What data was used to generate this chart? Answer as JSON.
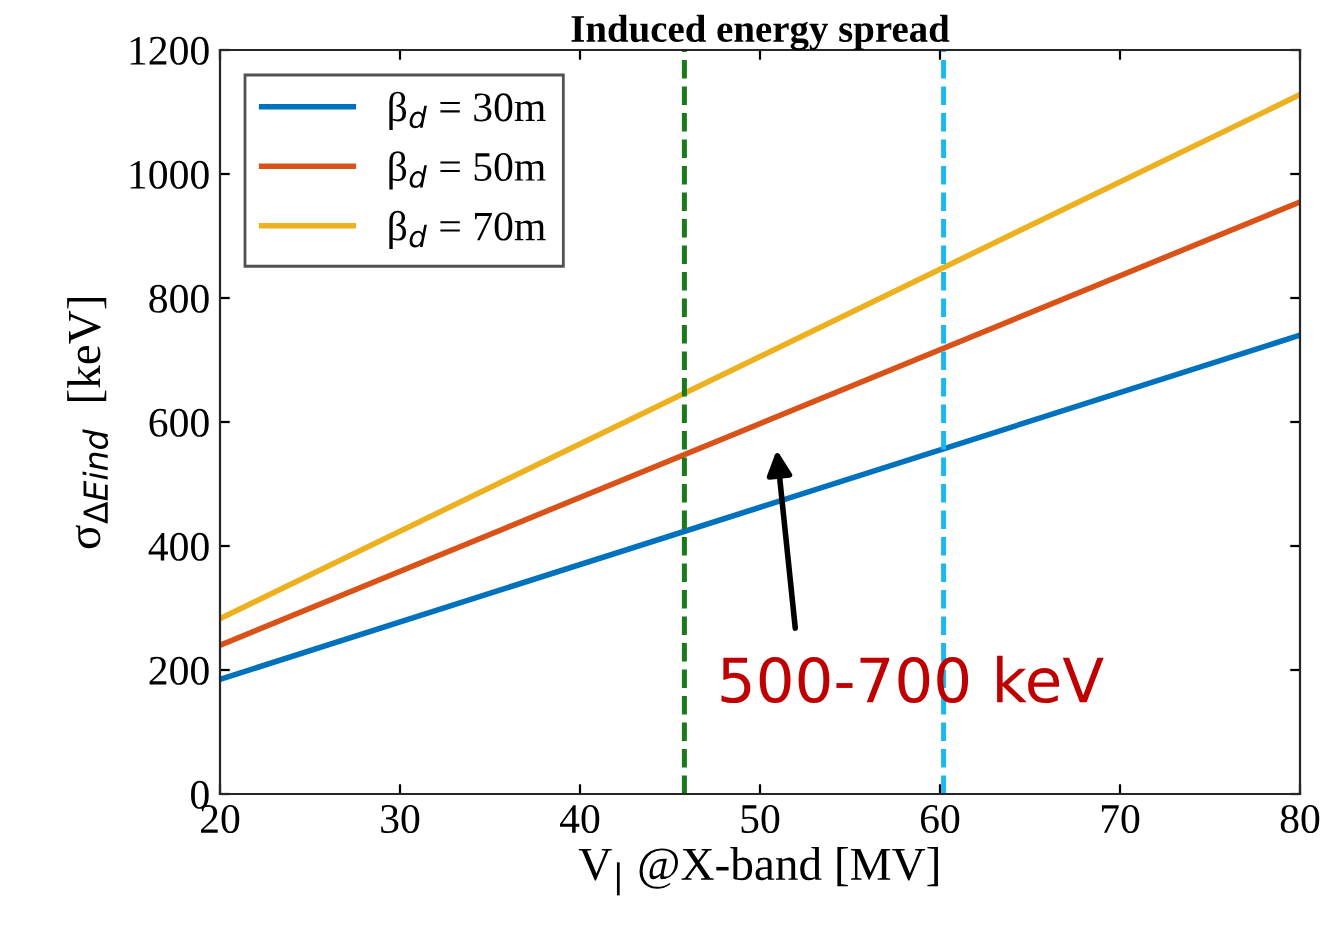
{
  "chart_data": {
    "type": "line",
    "title": "Induced energy spread",
    "xlabel": "V$_{|}$ @X-band [MV]",
    "ylabel": "σ$_{ΔEind}$  [keV]",
    "x": [
      20,
      80
    ],
    "series": [
      {
        "name": "β$_{d}$ = 30m",
        "color": "#0072bd",
        "values": [
          185,
          740
        ]
      },
      {
        "name": "β$_{d}$ = 50m",
        "color": "#d95319",
        "values": [
          240,
          955
        ]
      },
      {
        "name": "β$_{d}$ = 70m",
        "color": "#edb120",
        "values": [
          283,
          1128
        ]
      }
    ],
    "xlim": [
      20,
      80
    ],
    "xticks": [
      20,
      30,
      40,
      50,
      60,
      70,
      80
    ],
    "ylim": [
      0,
      1200
    ],
    "yticks": [
      0,
      200,
      400,
      600,
      800,
      1000,
      1200
    ],
    "ref_lines": [
      {
        "axis": "x",
        "value": 45.8,
        "color": "#1a7a1a",
        "line_style": "dashed"
      },
      {
        "axis": "x",
        "value": 60.2,
        "color": "#1ab8f0",
        "line_style": "dashed"
      }
    ],
    "annotations": [
      "500-700 keV"
    ],
    "grid": false,
    "legend": "top left",
    "marker": "none",
    "line_style": "solid"
  }
}
